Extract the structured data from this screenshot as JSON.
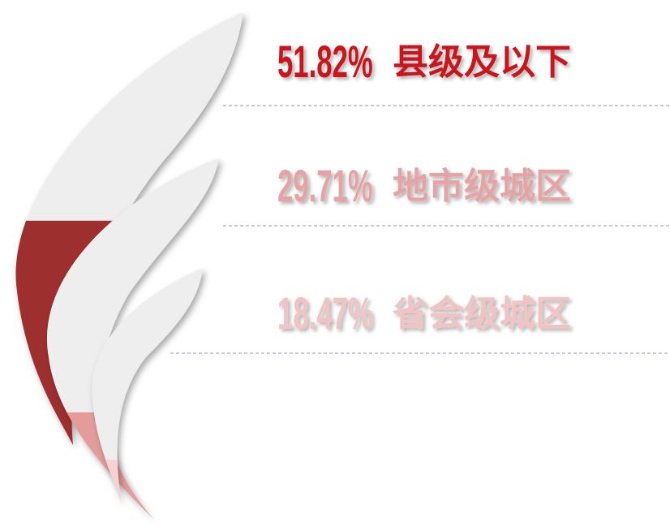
{
  "chart_data": {
    "type": "flame",
    "categories": [
      "县级及以下",
      "地市级城区",
      "省会级城区"
    ],
    "values": [
      51.82,
      29.71,
      18.47
    ],
    "value_labels": [
      "51.82%",
      "29.71%",
      "18.47%"
    ],
    "colors": [
      "#9e2f2f",
      "#e39c9a",
      "#f6d2d0"
    ],
    "text_colors": [
      "#c8141c",
      "#e6a3a3",
      "#f1c3c2"
    ],
    "ylim": [
      0,
      100
    ]
  }
}
